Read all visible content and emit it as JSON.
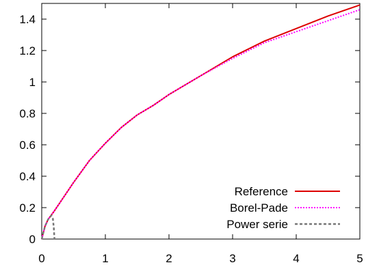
{
  "chart_data": {
    "type": "line",
    "title": "",
    "xlabel": "",
    "ylabel": "",
    "xlim": [
      0,
      5
    ],
    "ylim": [
      0,
      1.5
    ],
    "x_ticks": [
      0,
      1,
      2,
      3,
      4,
      5
    ],
    "x_tick_labels": [
      "0",
      "1",
      "2",
      "3",
      "4",
      "5"
    ],
    "y_ticks": [
      0,
      0.2,
      0.4,
      0.6,
      0.8,
      1,
      1.2,
      1.4
    ],
    "y_tick_labels": [
      "0",
      "0.2",
      "0.4",
      "0.6",
      "0.8",
      "1",
      "1.2",
      "1.4"
    ],
    "grid": false,
    "legend_position": "bottom-right",
    "series": [
      {
        "name": "Reference",
        "color": "#dd0000",
        "style": "solid",
        "points": [
          [
            0,
            0
          ],
          [
            0.05,
            0.08
          ],
          [
            0.1,
            0.125
          ],
          [
            0.2,
            0.18
          ],
          [
            0.3,
            0.24
          ],
          [
            0.5,
            0.36
          ],
          [
            0.75,
            0.5
          ],
          [
            1,
            0.61
          ],
          [
            1.25,
            0.71
          ],
          [
            1.5,
            0.79
          ],
          [
            1.75,
            0.85
          ],
          [
            2,
            0.92
          ],
          [
            2.5,
            1.04
          ],
          [
            3,
            1.16
          ],
          [
            3.5,
            1.26
          ],
          [
            4,
            1.34
          ],
          [
            4.5,
            1.42
          ],
          [
            5,
            1.49
          ]
        ]
      },
      {
        "name": "Borel-Pade",
        "color": "#ff00ff",
        "style": "dotted",
        "points": [
          [
            0,
            0
          ],
          [
            0.05,
            0.08
          ],
          [
            0.1,
            0.125
          ],
          [
            0.2,
            0.18
          ],
          [
            0.3,
            0.24
          ],
          [
            0.5,
            0.36
          ],
          [
            0.75,
            0.5
          ],
          [
            1,
            0.61
          ],
          [
            1.25,
            0.71
          ],
          [
            1.5,
            0.79
          ],
          [
            1.75,
            0.85
          ],
          [
            2,
            0.92
          ],
          [
            2.5,
            1.04
          ],
          [
            3,
            1.15
          ],
          [
            3.5,
            1.25
          ],
          [
            4,
            1.32
          ],
          [
            4.5,
            1.39
          ],
          [
            5,
            1.46
          ]
        ]
      },
      {
        "name": "Power serie",
        "color": "#777777",
        "style": "dashed",
        "points": [
          [
            0,
            0
          ],
          [
            0.05,
            0.08
          ],
          [
            0.1,
            0.125
          ],
          [
            0.15,
            0.15
          ],
          [
            0.175,
            0.13
          ],
          [
            0.19,
            0.07
          ],
          [
            0.2,
            0
          ]
        ]
      }
    ]
  }
}
